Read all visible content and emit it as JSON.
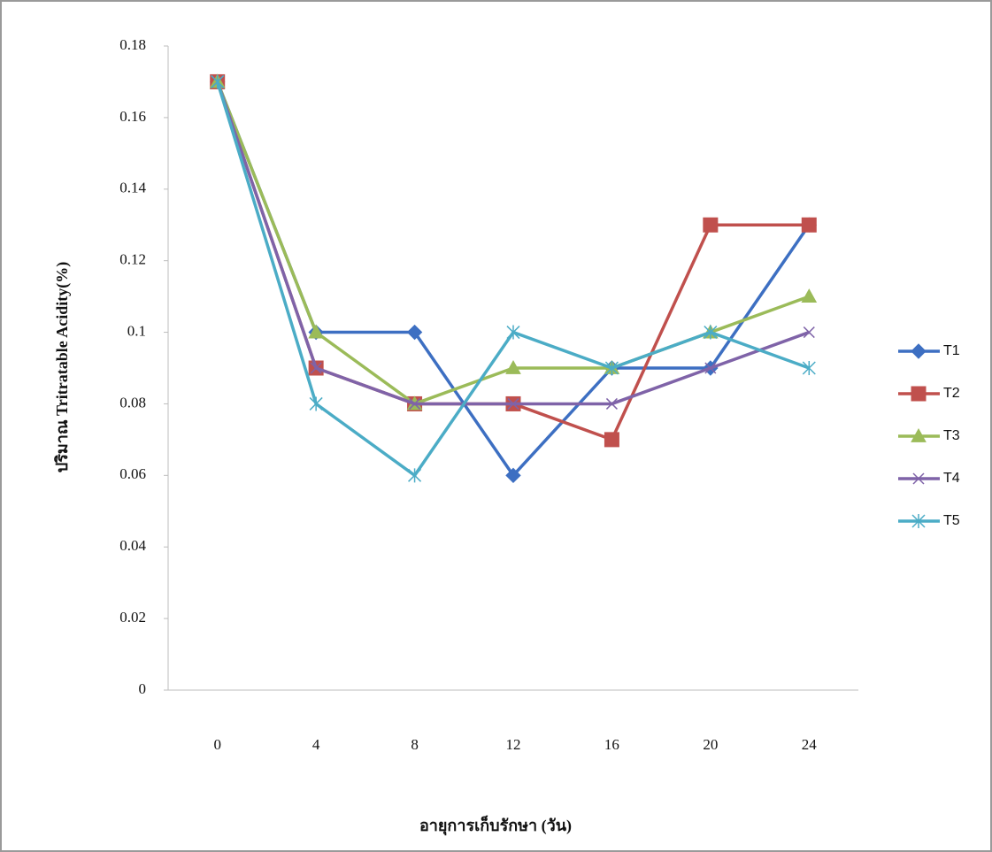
{
  "chart_data": {
    "type": "line",
    "y_label": "ปริมาณ Tritratable Acidity(%)",
    "x_label": "อายุการเก็บรักษา (วัน)",
    "categories": [
      "0",
      "4",
      "8",
      "12",
      "16",
      "20",
      "24"
    ],
    "series": [
      {
        "name": "T1",
        "color": "#3d6fc2",
        "marker": "diamond",
        "values": [
          0.17,
          0.1,
          0.1,
          0.06,
          0.09,
          0.09,
          0.13
        ]
      },
      {
        "name": "T2",
        "color": "#c0504d",
        "marker": "square",
        "values": [
          0.17,
          0.09,
          0.08,
          0.08,
          0.07,
          0.13,
          0.13
        ]
      },
      {
        "name": "T3",
        "color": "#9bbb59",
        "marker": "triangle",
        "values": [
          0.17,
          0.1,
          0.08,
          0.09,
          0.09,
          0.1,
          0.11
        ]
      },
      {
        "name": "T4",
        "color": "#7f63a8",
        "marker": "x",
        "values": [
          0.17,
          0.09,
          0.08,
          0.08,
          0.08,
          0.09,
          0.1
        ]
      },
      {
        "name": "T5",
        "color": "#4bacc6",
        "marker": "star",
        "values": [
          0.17,
          0.08,
          0.06,
          0.1,
          0.09,
          0.1,
          0.09
        ]
      }
    ],
    "ylim": [
      0,
      0.18
    ],
    "yticks": [
      0,
      0.02,
      0.04,
      0.06,
      0.08,
      0.1,
      0.12,
      0.14,
      0.16,
      0.18
    ],
    "grid": false,
    "legend": "right"
  }
}
